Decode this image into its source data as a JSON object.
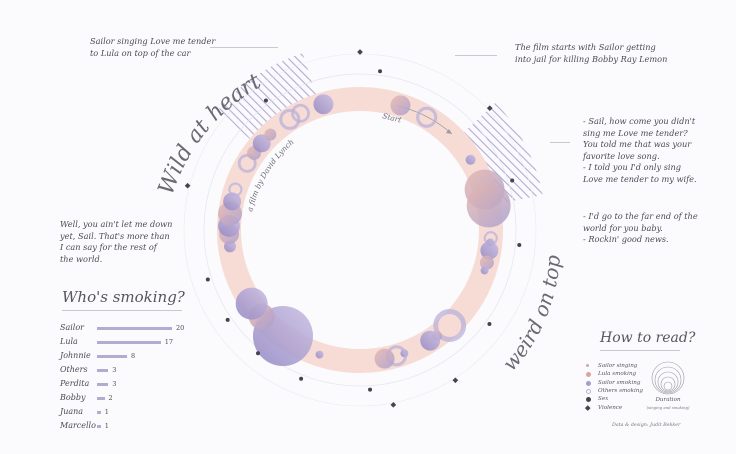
{
  "title": "Wild at heart",
  "subtitle": "a film by David Lynch",
  "bottom_title": "weird on top",
  "start_label": "Start",
  "quotes": {
    "top_left": "Sailor singing Love me tender\nto Lula on top of the car",
    "top_right": "The film starts with Sailor getting\ninto jail for killing Bobby Ray Lemon",
    "right_1": "- Sail, how come you didn't\n  sing me Love me tender?\n  You told me that was your\n  favorite love song.\n- I told you I'd only sing\n  Love me tender to my wife.",
    "right_2": "- I'd go to the far end of the\n  world for you baby.\n- Rockin' good news.",
    "left": "Well, you ain't let me down\nyet, Sail. That's more than\nI can say for the rest of\nthe world."
  },
  "smoking": {
    "title": "Who's smoking?",
    "rows": [
      {
        "name": "Sailor",
        "value": 20
      },
      {
        "name": "Lula",
        "value": 17
      },
      {
        "name": "Johnnie",
        "value": 8
      },
      {
        "name": "Others",
        "value": 3
      },
      {
        "name": "Perdita",
        "value": 3
      },
      {
        "name": "Bobby",
        "value": 2
      },
      {
        "name": "Juana",
        "value": 1
      },
      {
        "name": "Marcello",
        "value": 1
      }
    ]
  },
  "legend": {
    "title": "How to read?",
    "items": [
      {
        "label": "Sailor singing",
        "symbol": "arc-icon",
        "color": "#c9a9b5"
      },
      {
        "label": "Lula smoking",
        "symbol": "circle-icon",
        "color": "#d6a5a0"
      },
      {
        "label": "Sailor smoking",
        "symbol": "circle-icon",
        "color": "#a79ccd"
      },
      {
        "label": "Others smoking",
        "symbol": "ring-icon",
        "color": "#b9b1d8"
      },
      {
        "label": "Sex",
        "symbol": "dot-icon",
        "color": "#44444c"
      },
      {
        "label": "Violence",
        "symbol": "diamond-icon",
        "color": "#44444c"
      }
    ],
    "duration_label": "Duration",
    "duration_sub": "(singing and smoking)"
  },
  "credit": "Data & design: Judit Bekker",
  "colors": {
    "ring": "#f7dcd6",
    "lula": "#d6a5a0",
    "sailor": "#a79ccd",
    "dark": "#44444c"
  },
  "chart_data": {
    "type": "radial timeline",
    "bubbles": [
      {
        "t": 0.05,
        "r": 10,
        "kind": "lula"
      },
      {
        "t": 0.085,
        "r": 9,
        "kind": "ring"
      },
      {
        "t": 0.16,
        "r": 5,
        "kind": "sailor"
      },
      {
        "t": 0.2,
        "r": 20,
        "kind": "lula"
      },
      {
        "t": 0.22,
        "r": 22,
        "kind": "lula"
      },
      {
        "t": 0.26,
        "r": 6,
        "kind": "ring"
      },
      {
        "t": 0.265,
        "r": 4,
        "kind": "sailor"
      },
      {
        "t": 0.275,
        "r": 9,
        "kind": "sailor"
      },
      {
        "t": 0.29,
        "r": 7,
        "kind": "lula"
      },
      {
        "t": 0.3,
        "r": 4,
        "kind": "sailor"
      },
      {
        "t": 0.38,
        "r": 14,
        "kind": "ring"
      },
      {
        "t": 0.4,
        "r": 5,
        "kind": "lula"
      },
      {
        "t": 0.41,
        "r": 10,
        "kind": "sailor"
      },
      {
        "t": 0.445,
        "r": 4,
        "kind": "sailor"
      },
      {
        "t": 0.455,
        "r": 9,
        "kind": "ring"
      },
      {
        "t": 0.47,
        "r": 10,
        "kind": "lula"
      },
      {
        "t": 0.55,
        "r": 4,
        "kind": "sailor"
      },
      {
        "t": 0.6,
        "r": 30,
        "kind": "sailor"
      },
      {
        "t": 0.635,
        "r": 13,
        "kind": "lula"
      },
      {
        "t": 0.655,
        "r": 16,
        "kind": "sailor"
      },
      {
        "t": 0.73,
        "r": 6,
        "kind": "sailor"
      },
      {
        "t": 0.745,
        "r": 10,
        "kind": "lula"
      },
      {
        "t": 0.755,
        "r": 11,
        "kind": "sailor"
      },
      {
        "t": 0.77,
        "r": 12,
        "kind": "lula"
      },
      {
        "t": 0.785,
        "r": 9,
        "kind": "sailor"
      },
      {
        "t": 0.8,
        "r": 6,
        "kind": "ring"
      },
      {
        "t": 0.835,
        "r": 8,
        "kind": "ring"
      },
      {
        "t": 0.85,
        "r": 7,
        "kind": "lula"
      },
      {
        "t": 0.865,
        "r": 9,
        "kind": "sailor"
      },
      {
        "t": 0.88,
        "r": 6,
        "kind": "lula"
      },
      {
        "t": 0.91,
        "r": 9,
        "kind": "ring"
      },
      {
        "t": 0.925,
        "r": 8,
        "kind": "ring"
      },
      {
        "t": 0.955,
        "r": 10,
        "kind": "sailor"
      }
    ],
    "sex": [
      0.02,
      0.2,
      0.265,
      0.35,
      0.49,
      0.56,
      0.61,
      0.655,
      0.7,
      0.9
    ],
    "violence": [
      0.0,
      0.13,
      0.41,
      0.47,
      0.79
    ],
    "singing": [
      {
        "t0": 0.13,
        "t1": 0.22
      },
      {
        "t0": 0.86,
        "t1": 0.95
      }
    ]
  }
}
